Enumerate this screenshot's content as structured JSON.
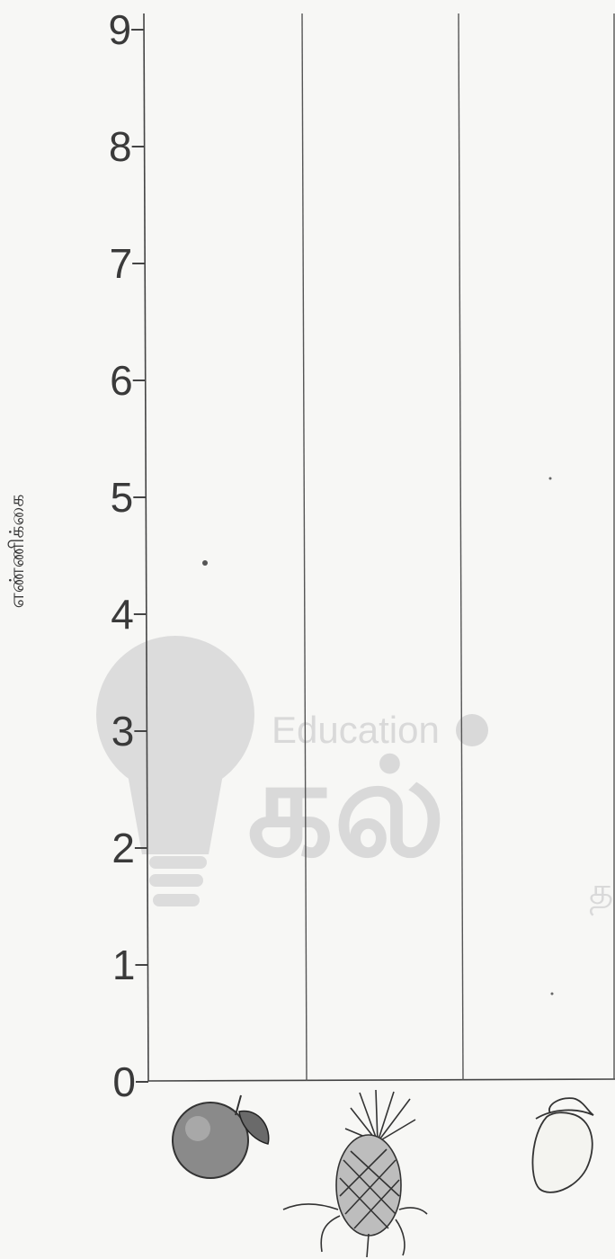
{
  "watermark": {
    "small": "Education",
    "large": "கல்",
    "fragment": "த"
  },
  "chart_data": {
    "type": "bar",
    "ylabel": "எண்ணிக்கை",
    "ylim": [
      0,
      9
    ],
    "yticks": [
      "0",
      "1",
      "2",
      "3",
      "4",
      "5",
      "6",
      "7",
      "8",
      "9"
    ],
    "categories": [
      "orange",
      "pineapple",
      "mango"
    ],
    "category_icons": [
      "orange-icon",
      "pineapple-icon",
      "mango-icon"
    ],
    "values": [
      null,
      null,
      null
    ],
    "grid": false
  },
  "colors": {
    "ink": "#3a3a3a",
    "paper": "#f7f7f5",
    "watermark": "#dadada"
  }
}
